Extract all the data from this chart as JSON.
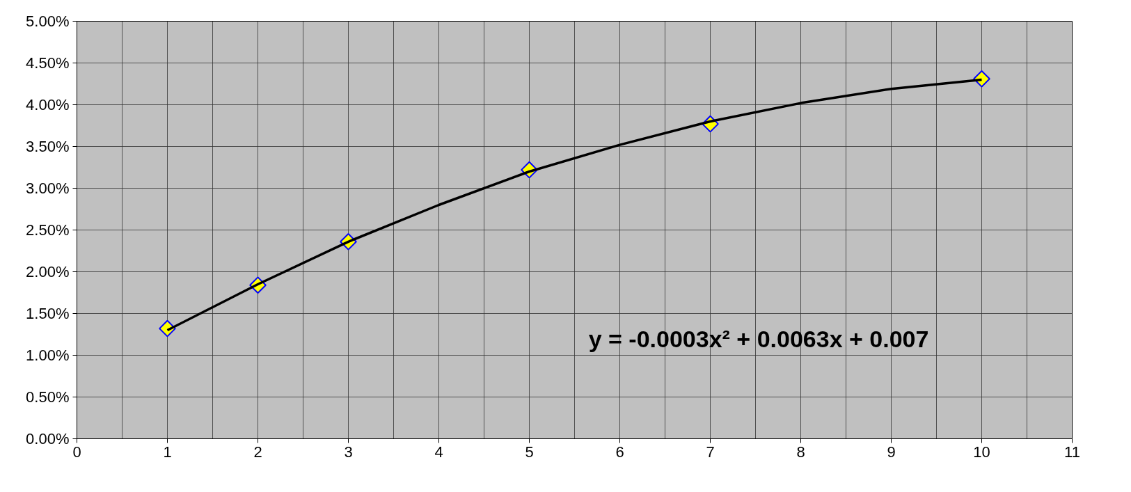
{
  "chart_data": {
    "type": "scatter",
    "x": [
      1,
      2,
      3,
      5,
      7,
      10
    ],
    "series": [
      {
        "color": "#ffff00",
        "values": [
          1.32,
          1.84,
          2.36,
          3.22,
          3.77,
          4.31
        ]
      },
      {
        "type": "line",
        "marker": "none",
        "color": "#000000",
        "x": [
          1,
          2,
          3,
          4,
          5,
          6,
          7,
          8,
          9,
          10
        ],
        "values": [
          1.3,
          1.85,
          2.36,
          2.8,
          3.2,
          3.52,
          3.8,
          4.02,
          4.19,
          4.3
        ]
      }
    ],
    "marker": "diamond",
    "grid": true,
    "xlim": [
      0,
      11
    ],
    "xticks": [
      0,
      1,
      2,
      3,
      4,
      5,
      6,
      7,
      8,
      9,
      10,
      11
    ],
    "ylim": [
      0,
      5
    ],
    "yticks": [
      {
        "value": 0,
        "label": "0.00%"
      },
      {
        "value": 0.5,
        "label": "0.50%"
      },
      {
        "value": 1,
        "label": "1.00%"
      },
      {
        "value": 1.5,
        "label": "1.50%"
      },
      {
        "value": 2,
        "label": "2.00%"
      },
      {
        "value": 2.5,
        "label": "2.50%"
      },
      {
        "value": 3,
        "label": "3.00%"
      },
      {
        "value": 3.5,
        "label": "3.50%"
      },
      {
        "value": 4,
        "label": "4.00%"
      },
      {
        "value": 4.5,
        "label": "4.50%"
      },
      {
        "value": 5,
        "label": "5.00%"
      }
    ],
    "annotations": [
      "y = -0.0003x² + 0.0063x + 0.007"
    ]
  }
}
